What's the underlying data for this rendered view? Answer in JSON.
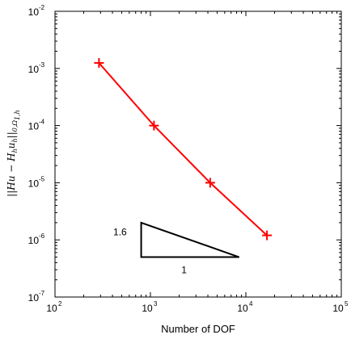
{
  "chart_data": {
    "type": "line",
    "xscale": "log",
    "yscale": "log",
    "xlim": [
      100,
      100000
    ],
    "ylim": [
      1e-07,
      0.01
    ],
    "xlabel": "Number of DOF",
    "ylabel": {
      "parts": [
        {
          "t": "||Hu − H",
          "sub": false
        },
        {
          "t": "h",
          "sub": true
        },
        {
          "t": "u",
          "sub": false
        },
        {
          "t": "h",
          "sub": true
        },
        {
          "t": "||",
          "sub": false
        },
        {
          "t": "0,Ω",
          "sub": true
        },
        {
          "t": "1,h",
          "sub": true
        }
      ]
    },
    "grid": false,
    "box": true,
    "xticks": [
      {
        "value": 100,
        "base": "10",
        "exp": "2"
      },
      {
        "value": 1000,
        "base": "10",
        "exp": "3"
      },
      {
        "value": 10000,
        "base": "10",
        "exp": "4"
      },
      {
        "value": 100000,
        "base": "10",
        "exp": "5"
      }
    ],
    "yticks": [
      {
        "value": 1e-07,
        "base": "10",
        "exp": "-7"
      },
      {
        "value": 1e-06,
        "base": "10",
        "exp": "-6"
      },
      {
        "value": 1e-05,
        "base": "10",
        "exp": "-5"
      },
      {
        "value": 0.0001,
        "base": "10",
        "exp": "-4"
      },
      {
        "value": 0.001,
        "base": "10",
        "exp": "-3"
      },
      {
        "value": 0.01,
        "base": "10",
        "exp": "-2"
      }
    ],
    "series": [
      {
        "color": "#ff0000",
        "marker": "plus",
        "points": [
          {
            "x": 289,
            "y": 0.00125
          },
          {
            "x": 1089,
            "y": 0.0001
          },
          {
            "x": 4225,
            "y": 1e-05
          },
          {
            "x": 16641,
            "y": 1.2e-06
          }
        ]
      }
    ],
    "annotations": {
      "slope_triangle": {
        "vertices": [
          {
            "x": 800,
            "y": 2e-06
          },
          {
            "x": 800,
            "y": 5e-07
          },
          {
            "x": 8500,
            "y": 5e-07
          }
        ],
        "color": "#000000",
        "labels": [
          {
            "text": "1.6",
            "x": 480,
            "y": 1.2e-06
          },
          {
            "text": "1",
            "x": 2250,
            "y": 2.6e-07
          }
        ]
      }
    }
  }
}
